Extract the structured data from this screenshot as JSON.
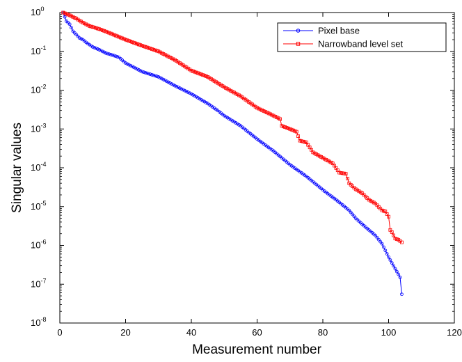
{
  "chart_data": {
    "type": "line",
    "title": "",
    "xlabel": "Measurement number",
    "ylabel": "Singular values",
    "xlim": [
      0,
      120
    ],
    "ylim": [
      1e-08,
      1
    ],
    "yscale": "log",
    "grid": false,
    "legend_position": "top-right",
    "x_ticks": [
      0,
      20,
      40,
      60,
      80,
      100,
      120
    ],
    "x_tick_labels": [
      "0",
      "20",
      "40",
      "60",
      "80",
      "100",
      "120"
    ],
    "y_ticks": [
      0,
      -1,
      -2,
      -3,
      -4,
      -5,
      -6,
      -7,
      -8
    ],
    "y_tick_labels": [
      {
        "base": "10",
        "exp": "0"
      },
      {
        "base": "10",
        "exp": "-1"
      },
      {
        "base": "10",
        "exp": "-2"
      },
      {
        "base": "10",
        "exp": "-3"
      },
      {
        "base": "10",
        "exp": "-4"
      },
      {
        "base": "10",
        "exp": "-5"
      },
      {
        "base": "10",
        "exp": "-6"
      },
      {
        "base": "10",
        "exp": "-7"
      },
      {
        "base": "10",
        "exp": "-8"
      }
    ],
    "series": [
      {
        "name": "Pixel base",
        "color": "#0000ff",
        "marker": "circle",
        "points": [
          [
            1,
            1
          ],
          [
            2,
            0.6
          ],
          [
            3,
            0.5
          ],
          [
            4,
            0.33
          ],
          [
            5,
            0.27
          ],
          [
            6,
            0.22
          ],
          [
            7,
            0.2
          ],
          [
            8,
            0.17
          ],
          [
            10,
            0.13
          ],
          [
            12,
            0.11
          ],
          [
            14,
            0.09
          ],
          [
            16,
            0.08
          ],
          [
            18,
            0.07
          ],
          [
            20,
            0.05
          ],
          [
            25,
            0.03
          ],
          [
            30,
            0.022
          ],
          [
            35,
            0.013
          ],
          [
            40,
            0.008
          ],
          [
            45,
            0.0045
          ],
          [
            48,
            0.003
          ],
          [
            50,
            0.0022
          ],
          [
            55,
            0.0012
          ],
          [
            60,
            0.00055
          ],
          [
            65,
            0.00027
          ],
          [
            70,
            0.00012
          ],
          [
            75,
            6e-05
          ],
          [
            80,
            2.7e-05
          ],
          [
            82,
            2e-05
          ],
          [
            84,
            1.5e-05
          ],
          [
            86,
            1.1e-05
          ],
          [
            88,
            8e-06
          ],
          [
            90,
            5e-06
          ],
          [
            92,
            3.5e-06
          ],
          [
            94,
            2.5e-06
          ],
          [
            96,
            1.8e-06
          ],
          [
            98,
            1.1e-06
          ],
          [
            100,
            5e-07
          ],
          [
            102,
            2.5e-07
          ],
          [
            103,
            1.8e-07
          ],
          [
            103.5,
            1.5e-07
          ],
          [
            104,
            5.5e-08
          ]
        ]
      },
      {
        "name": "Narrowband level set",
        "color": "#ff0000",
        "marker": "square",
        "points": [
          [
            1,
            1
          ],
          [
            3,
            0.85
          ],
          [
            5,
            0.7
          ],
          [
            7,
            0.55
          ],
          [
            9,
            0.45
          ],
          [
            11,
            0.4
          ],
          [
            13,
            0.35
          ],
          [
            15,
            0.3
          ],
          [
            20,
            0.2
          ],
          [
            25,
            0.14
          ],
          [
            30,
            0.1
          ],
          [
            35,
            0.06
          ],
          [
            40,
            0.032
          ],
          [
            45,
            0.022
          ],
          [
            50,
            0.012
          ],
          [
            55,
            0.007
          ],
          [
            60,
            0.0035
          ],
          [
            65,
            0.0022
          ],
          [
            67,
            0.0018
          ],
          [
            67.5,
            0.0012
          ],
          [
            70,
            0.001
          ],
          [
            72,
            0.00085
          ],
          [
            73,
            0.0005
          ],
          [
            75,
            0.00045
          ],
          [
            77,
            0.00025
          ],
          [
            80,
            0.00018
          ],
          [
            83,
            0.00013
          ],
          [
            85,
            7.5e-05
          ],
          [
            87,
            7e-05
          ],
          [
            88,
            4e-05
          ],
          [
            90,
            2.8e-05
          ],
          [
            92,
            2.2e-05
          ],
          [
            94,
            1.5e-05
          ],
          [
            96,
            1.2e-05
          ],
          [
            98,
            8e-06
          ],
          [
            99,
            7.5e-06
          ],
          [
            100,
            5.5e-06
          ],
          [
            100.5,
            2.5e-06
          ],
          [
            101,
            2.2e-06
          ],
          [
            102,
            1.5e-06
          ],
          [
            103,
            1.4e-06
          ],
          [
            104,
            1.2e-06
          ]
        ]
      }
    ]
  }
}
